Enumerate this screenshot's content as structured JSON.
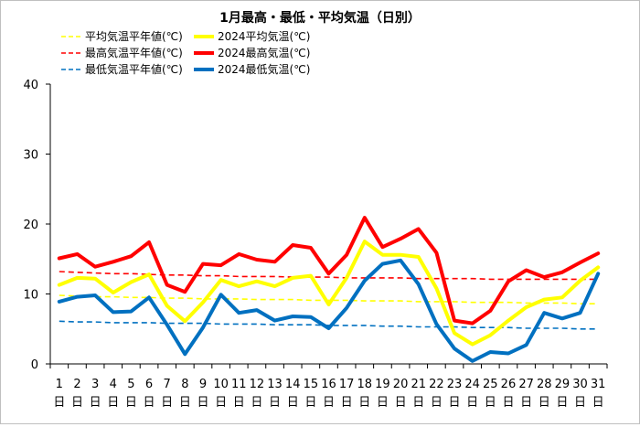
{
  "chart_data": {
    "type": "line",
    "title": "1月最高・最低・平均気温（日別）",
    "xlabel": "",
    "ylabel": "",
    "ylim": [
      0,
      40
    ],
    "yticks": [
      0,
      10,
      20,
      30,
      40
    ],
    "grid": false,
    "legend_position": "top",
    "categories": [
      "1",
      "2",
      "3",
      "4",
      "5",
      "6",
      "7",
      "8",
      "9",
      "10",
      "11",
      "12",
      "13",
      "14",
      "15",
      "16",
      "17",
      "18",
      "19",
      "20",
      "21",
      "22",
      "23",
      "24",
      "25",
      "26",
      "27",
      "28",
      "29",
      "30",
      "31"
    ],
    "category_suffix": "日",
    "series": [
      {
        "name": "平均気温平年値(℃)",
        "color": "#ffff00",
        "style": "dashed",
        "values": [
          9.8,
          9.7,
          9.6,
          9.6,
          9.5,
          9.5,
          9.4,
          9.4,
          9.3,
          9.3,
          9.3,
          9.2,
          9.2,
          9.2,
          9.1,
          9.1,
          9.1,
          9.0,
          9.0,
          9.0,
          8.9,
          8.9,
          8.9,
          8.8,
          8.8,
          8.8,
          8.7,
          8.7,
          8.7,
          8.6,
          8.6
        ]
      },
      {
        "name": "2024平均気温(℃)",
        "color": "#ffff00",
        "style": "solid",
        "values": [
          11.3,
          12.3,
          12.2,
          10.2,
          11.7,
          12.8,
          8.3,
          6.1,
          8.8,
          12.0,
          11.1,
          11.8,
          11.1,
          12.3,
          12.6,
          8.5,
          12.3,
          17.5,
          15.6,
          15.6,
          15.3,
          10.8,
          4.4,
          2.8,
          4.1,
          6.2,
          8.1,
          9.2,
          9.5,
          11.9,
          13.8
        ]
      },
      {
        "name": "最高気温平年値(℃)",
        "color": "#ff0000",
        "style": "dashed",
        "values": [
          13.2,
          13.1,
          13.0,
          12.9,
          12.9,
          12.8,
          12.7,
          12.7,
          12.6,
          12.6,
          12.5,
          12.5,
          12.5,
          12.4,
          12.4,
          12.4,
          12.3,
          12.3,
          12.3,
          12.3,
          12.2,
          12.2,
          12.2,
          12.2,
          12.1,
          12.1,
          12.1,
          12.1,
          12.1,
          12.1,
          12.1
        ]
      },
      {
        "name": "2024最高気温(℃)",
        "color": "#ff0000",
        "style": "solid",
        "values": [
          15.1,
          15.7,
          13.9,
          14.6,
          15.4,
          17.4,
          11.3,
          10.3,
          14.3,
          14.1,
          15.7,
          14.9,
          14.6,
          17.0,
          16.6,
          12.9,
          15.6,
          20.9,
          16.7,
          17.9,
          19.3,
          15.9,
          6.2,
          5.8,
          7.6,
          11.8,
          13.4,
          12.4,
          13.1,
          14.5,
          15.8
        ]
      },
      {
        "name": "最低気温平年値(℃)",
        "color": "#0070c0",
        "style": "dashed",
        "values": [
          6.1,
          6.0,
          6.0,
          5.9,
          5.9,
          5.9,
          5.8,
          5.8,
          5.8,
          5.7,
          5.7,
          5.7,
          5.6,
          5.6,
          5.6,
          5.5,
          5.5,
          5.5,
          5.4,
          5.4,
          5.3,
          5.3,
          5.3,
          5.2,
          5.2,
          5.2,
          5.1,
          5.1,
          5.1,
          5.0,
          5.0
        ]
      },
      {
        "name": "2024最低気温(℃)",
        "color": "#0070c0",
        "style": "solid",
        "values": [
          8.9,
          9.6,
          9.8,
          7.4,
          7.5,
          9.5,
          5.6,
          1.4,
          5.2,
          9.9,
          7.3,
          7.7,
          6.2,
          6.8,
          6.7,
          5.1,
          8.0,
          11.9,
          14.3,
          14.8,
          11.4,
          5.7,
          2.2,
          0.4,
          1.7,
          1.5,
          2.7,
          7.3,
          6.5,
          7.3,
          12.9
        ]
      }
    ]
  }
}
